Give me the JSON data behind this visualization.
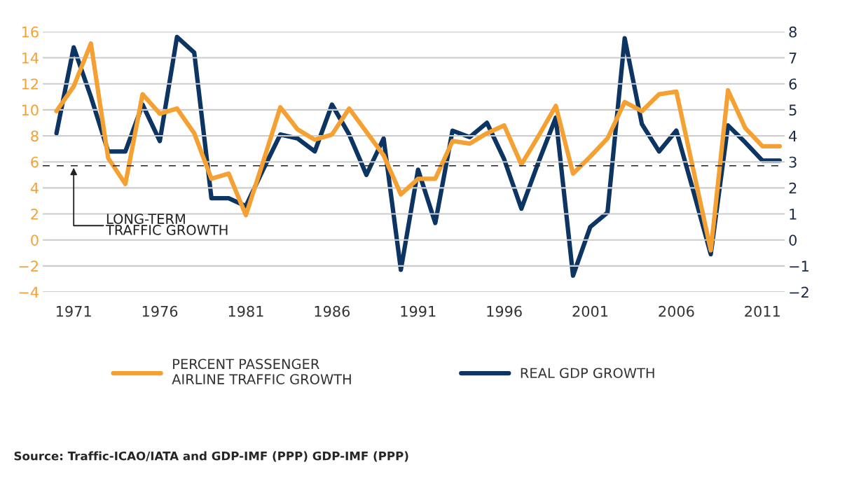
{
  "chart_data": {
    "type": "line",
    "x": [
      1970,
      1971,
      1972,
      1973,
      1974,
      1975,
      1976,
      1977,
      1978,
      1979,
      1980,
      1981,
      1982,
      1983,
      1984,
      1985,
      1986,
      1987,
      1988,
      1989,
      1990,
      1991,
      1992,
      1993,
      1994,
      1995,
      1996,
      1997,
      1998,
      1999,
      2000,
      2001,
      2002,
      2003,
      2004,
      2005,
      2006,
      2007,
      2008,
      2009,
      2010,
      2011,
      2012
    ],
    "series": [
      {
        "name": "PERCENT PASSENGER\nAIRLINE TRAFFIC GROWTH",
        "color": "#f5a033",
        "values": [
          9.9,
          11.8,
          15.1,
          6.3,
          4.3,
          11.2,
          9.7,
          10.1,
          8.2,
          4.7,
          5.1,
          1.9,
          6.0,
          10.2,
          8.5,
          7.7,
          8.1,
          10.1,
          8.3,
          6.5,
          3.5,
          4.7,
          4.7,
          7.6,
          7.4,
          8.2,
          8.8,
          5.8,
          8.0,
          10.3,
          5.1,
          6.4,
          7.8,
          10.6,
          9.9,
          11.2,
          11.4,
          5.3,
          -0.8,
          11.5,
          8.6,
          7.2,
          7.2
        ]
      },
      {
        "name": "REAL GDP GROWTH",
        "color": "#0d3563",
        "axis": "y2",
        "values": [
          4.1,
          7.4,
          5.5,
          3.4,
          3.4,
          5.2,
          3.8,
          7.8,
          7.2,
          1.6,
          1.6,
          1.3,
          2.7,
          4.05,
          3.9,
          3.4,
          5.2,
          4.05,
          2.5,
          3.9,
          -1.15,
          2.7,
          0.65,
          4.2,
          3.95,
          4.5,
          3.1,
          1.2,
          3.0,
          4.7,
          -1.37,
          0.5,
          1.05,
          7.75,
          4.45,
          3.4,
          4.2,
          1.85,
          -0.55,
          4.4,
          3.75,
          3.05,
          3.05
        ]
      }
    ],
    "xlim": [
      1969.2,
      2012.3
    ],
    "xticks": [
      1971,
      1976,
      1981,
      1986,
      1991,
      1996,
      2001,
      2006,
      2011
    ],
    "ylim": [
      -4,
      16
    ],
    "yticks": [
      -4,
      -2,
      0,
      2,
      4,
      6,
      8,
      10,
      12,
      14,
      16
    ],
    "y2lim": [
      -2,
      8
    ],
    "y2ticks": [
      -2,
      -1,
      0,
      1,
      2,
      3,
      4,
      5,
      6,
      7,
      8
    ],
    "ref_lines": [
      {
        "axis": "y",
        "value": 5.7,
        "label": "LONG-TERM\nTRAFFIC GROWTH",
        "color": "#222222",
        "line_style": "dashed"
      }
    ],
    "annotations": [
      "Source: Traffic-ICAO/IATA and GDP-IMF (PPP) GDP-IMF (PPP)"
    ],
    "grid": "y",
    "legend": "bottom",
    "marker": "none",
    "line_style": "solid"
  }
}
